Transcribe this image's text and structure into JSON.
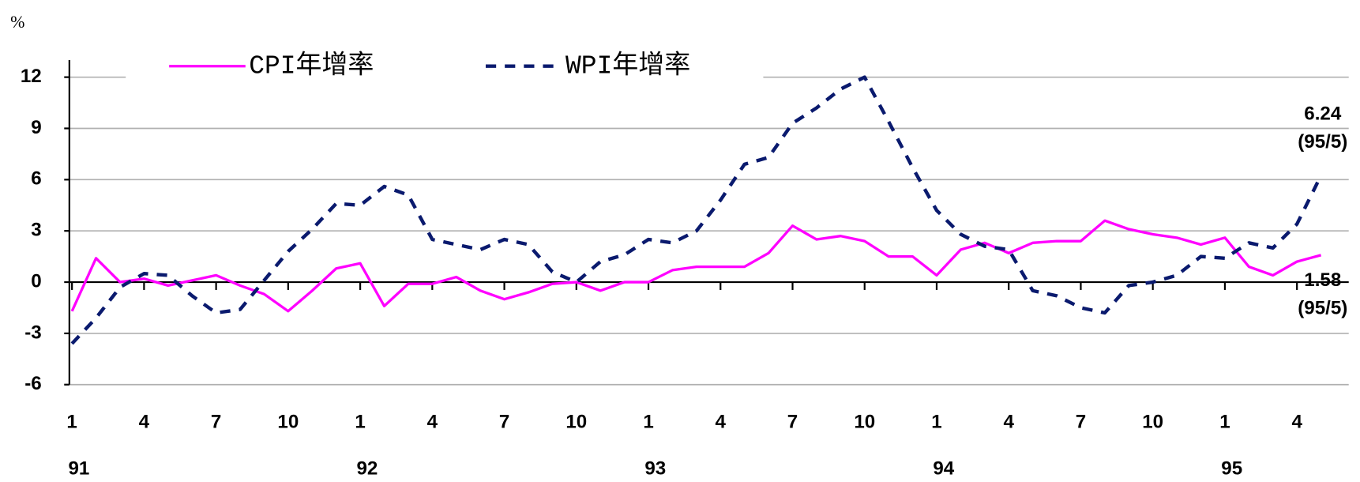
{
  "chart_data": {
    "type": "line",
    "y_label": "%",
    "categories": [
      "1",
      null,
      null,
      "4",
      null,
      null,
      "7",
      null,
      null,
      "10",
      null,
      null,
      "1",
      null,
      null,
      "4",
      null,
      null,
      "7",
      null,
      null,
      "10",
      null,
      null,
      "1",
      null,
      null,
      "4",
      null,
      null,
      "7",
      null,
      null,
      "10",
      null,
      null,
      "1",
      null,
      null,
      "4",
      null,
      null,
      "7",
      null,
      null,
      "10",
      null,
      null,
      "1",
      null,
      null,
      "4",
      null
    ],
    "years": [
      "91",
      "92",
      "93",
      "94",
      "95"
    ],
    "ylim": [
      -6,
      13
    ],
    "yticks": [
      -6,
      -3,
      0,
      3,
      6,
      9,
      12
    ],
    "grid": true,
    "series": [
      {
        "name": "CPI年增率",
        "color": "#ff00ff",
        "style": "solid",
        "note": "(95/5)",
        "values": [
          -1.7,
          1.4,
          0.0,
          0.2,
          -0.2,
          0.1,
          0.4,
          -0.2,
          -0.7,
          -1.7,
          -0.5,
          0.8,
          1.1,
          -1.4,
          -0.1,
          -0.1,
          0.3,
          -0.5,
          -1.0,
          -0.6,
          -0.1,
          0.0,
          -0.5,
          0.0,
          0.0,
          0.7,
          0.9,
          0.9,
          0.9,
          1.7,
          3.3,
          2.5,
          2.7,
          2.4,
          1.5,
          1.5,
          0.4,
          1.9,
          2.3,
          1.7,
          2.3,
          2.4,
          2.4,
          3.6,
          3.1,
          2.8,
          2.6,
          2.2,
          2.6,
          0.9,
          0.4,
          1.2,
          1.58
        ]
      },
      {
        "name": "WPI年增率",
        "color": "#0a1a6e",
        "style": "dashed",
        "note": "(95/5)",
        "values": [
          -3.6,
          -2.1,
          -0.3,
          0.5,
          0.4,
          -0.8,
          -1.8,
          -1.6,
          0.1,
          1.8,
          3.1,
          4.6,
          4.5,
          5.6,
          5.1,
          2.5,
          2.2,
          1.9,
          2.5,
          2.2,
          0.6,
          0.0,
          1.2,
          1.6,
          2.5,
          2.3,
          3.0,
          4.8,
          6.9,
          7.3,
          9.3,
          10.2,
          11.3,
          12.0,
          9.4,
          6.7,
          4.2,
          2.8,
          2.1,
          1.9,
          -0.5,
          -0.8,
          -1.5,
          -1.8,
          -0.2,
          0.0,
          0.4,
          1.5,
          1.4,
          2.3,
          2.0,
          3.4,
          6.24
        ]
      }
    ]
  }
}
